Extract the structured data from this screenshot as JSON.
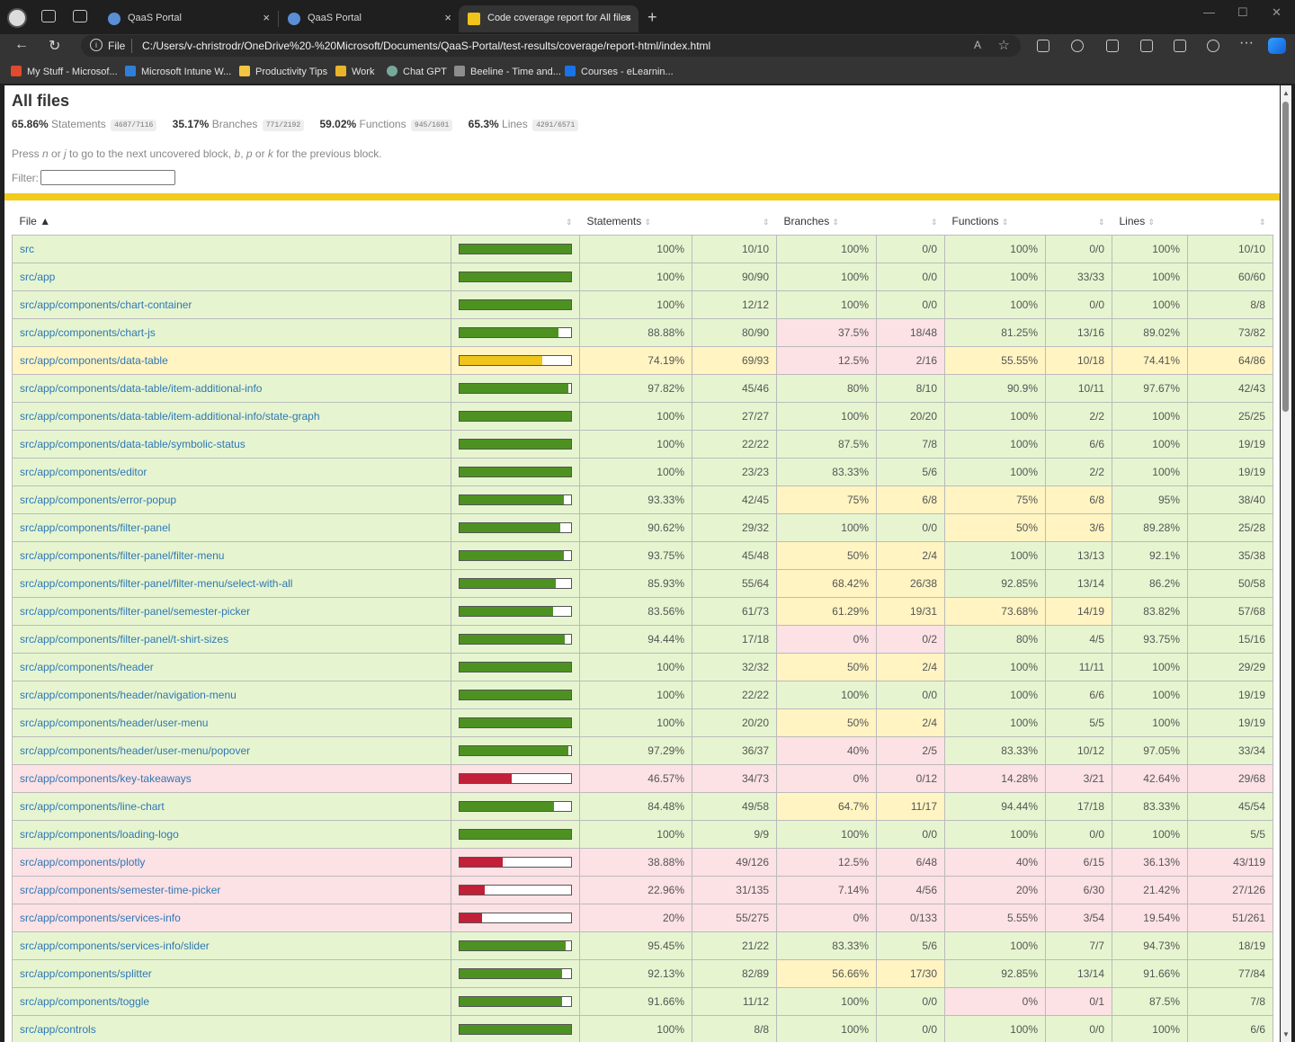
{
  "browser": {
    "tabs": [
      {
        "label": "QaaS Portal",
        "active": false
      },
      {
        "label": "QaaS Portal",
        "active": false
      },
      {
        "label": "Code coverage report for All files",
        "active": true
      }
    ],
    "address_scheme": "File",
    "url": "C:/Users/v-christrodr/OneDrive%20-%20Microsoft/Documents/QaaS-Portal/test-results/coverage/report-html/index.html",
    "bookmarks": [
      {
        "label": "My Stuff - Microsof...",
        "color": "#e04a2d"
      },
      {
        "label": "Microsoft Intune W...",
        "color": "#2f7fd8"
      },
      {
        "label": "Productivity Tips",
        "color": "#f4c542"
      },
      {
        "label": "Work",
        "color": "#e8b52a"
      },
      {
        "label": "Chat GPT",
        "color": "#76a99c"
      },
      {
        "label": "Beeline - Time and...",
        "color": "#8d8d8d"
      },
      {
        "label": "Courses - eLearnin...",
        "color": "#1a73e8"
      }
    ]
  },
  "report": {
    "title": "All files",
    "summary": [
      {
        "pct": "65.86%",
        "label": "Statements",
        "frac": "4687/7116"
      },
      {
        "pct": "35.17%",
        "label": "Branches",
        "frac": "771/2192"
      },
      {
        "pct": "59.02%",
        "label": "Functions",
        "frac": "945/1601"
      },
      {
        "pct": "65.3%",
        "label": "Lines",
        "frac": "4291/6571"
      }
    ],
    "hint": {
      "p1": "Press ",
      "k1": "n",
      "p2": " or ",
      "k2": "j",
      "p3": " to go to the next uncovered block, ",
      "k3": "b",
      "p4": ", ",
      "k4": "p",
      "p5": " or ",
      "k5": "k",
      "p6": " for the previous block."
    },
    "filter_label": "Filter:",
    "columns": {
      "file": "File",
      "statements": "Statements",
      "branches": "Branches",
      "functions": "Functions",
      "lines": "Lines"
    },
    "colors": {
      "high": "#4d9221",
      "medium": "#f0c419",
      "low": "#c21f39",
      "status_line": "#f2cc1b"
    },
    "rows": [
      {
        "file": "src",
        "level": "high",
        "stmt_fill": 1.0,
        "stmt": "100%",
        "stmt_frac": "10/10",
        "br": "100%",
        "br_frac": "0/0",
        "br_level": "high",
        "fn": "100%",
        "fn_frac": "0/0",
        "fn_level": "high",
        "ln": "100%",
        "ln_frac": "10/10",
        "ln_level": "high"
      },
      {
        "file": "src/app",
        "level": "high",
        "stmt_fill": 1.0,
        "stmt": "100%",
        "stmt_frac": "90/90",
        "br": "100%",
        "br_frac": "0/0",
        "br_level": "high",
        "fn": "100%",
        "fn_frac": "33/33",
        "fn_level": "high",
        "ln": "100%",
        "ln_frac": "60/60",
        "ln_level": "high"
      },
      {
        "file": "src/app/components/chart-container",
        "level": "high",
        "stmt_fill": 1.0,
        "stmt": "100%",
        "stmt_frac": "12/12",
        "br": "100%",
        "br_frac": "0/0",
        "br_level": "high",
        "fn": "100%",
        "fn_frac": "0/0",
        "fn_level": "high",
        "ln": "100%",
        "ln_frac": "8/8",
        "ln_level": "high"
      },
      {
        "file": "src/app/components/chart-js",
        "level": "high",
        "stmt_fill": 0.8888,
        "stmt": "88.88%",
        "stmt_frac": "80/90",
        "br": "37.5%",
        "br_frac": "18/48",
        "br_level": "low",
        "fn": "81.25%",
        "fn_frac": "13/16",
        "fn_level": "high",
        "ln": "89.02%",
        "ln_frac": "73/82",
        "ln_level": "high"
      },
      {
        "file": "src/app/components/data-table",
        "level": "medium",
        "stmt_fill": 0.7419,
        "stmt": "74.19%",
        "stmt_frac": "69/93",
        "br": "12.5%",
        "br_frac": "2/16",
        "br_level": "low",
        "fn": "55.55%",
        "fn_frac": "10/18",
        "fn_level": "medium",
        "ln": "74.41%",
        "ln_frac": "64/86",
        "ln_level": "medium"
      },
      {
        "file": "src/app/components/data-table/item-additional-info",
        "level": "high",
        "stmt_fill": 0.9782,
        "stmt": "97.82%",
        "stmt_frac": "45/46",
        "br": "80%",
        "br_frac": "8/10",
        "br_level": "high",
        "fn": "90.9%",
        "fn_frac": "10/11",
        "fn_level": "high",
        "ln": "97.67%",
        "ln_frac": "42/43",
        "ln_level": "high"
      },
      {
        "file": "src/app/components/data-table/item-additional-info/state-graph",
        "level": "high",
        "stmt_fill": 1.0,
        "stmt": "100%",
        "stmt_frac": "27/27",
        "br": "100%",
        "br_frac": "20/20",
        "br_level": "high",
        "fn": "100%",
        "fn_frac": "2/2",
        "fn_level": "high",
        "ln": "100%",
        "ln_frac": "25/25",
        "ln_level": "high"
      },
      {
        "file": "src/app/components/data-table/symbolic-status",
        "level": "high",
        "stmt_fill": 1.0,
        "stmt": "100%",
        "stmt_frac": "22/22",
        "br": "87.5%",
        "br_frac": "7/8",
        "br_level": "high",
        "fn": "100%",
        "fn_frac": "6/6",
        "fn_level": "high",
        "ln": "100%",
        "ln_frac": "19/19",
        "ln_level": "high"
      },
      {
        "file": "src/app/components/editor",
        "level": "high",
        "stmt_fill": 1.0,
        "stmt": "100%",
        "stmt_frac": "23/23",
        "br": "83.33%",
        "br_frac": "5/6",
        "br_level": "high",
        "fn": "100%",
        "fn_frac": "2/2",
        "fn_level": "high",
        "ln": "100%",
        "ln_frac": "19/19",
        "ln_level": "high"
      },
      {
        "file": "src/app/components/error-popup",
        "level": "high",
        "stmt_fill": 0.9333,
        "stmt": "93.33%",
        "stmt_frac": "42/45",
        "br": "75%",
        "br_frac": "6/8",
        "br_level": "medium",
        "fn": "75%",
        "fn_frac": "6/8",
        "fn_level": "medium",
        "ln": "95%",
        "ln_frac": "38/40",
        "ln_level": "high"
      },
      {
        "file": "src/app/components/filter-panel",
        "level": "high",
        "stmt_fill": 0.9062,
        "stmt": "90.62%",
        "stmt_frac": "29/32",
        "br": "100%",
        "br_frac": "0/0",
        "br_level": "high",
        "fn": "50%",
        "fn_frac": "3/6",
        "fn_level": "medium",
        "ln": "89.28%",
        "ln_frac": "25/28",
        "ln_level": "high"
      },
      {
        "file": "src/app/components/filter-panel/filter-menu",
        "level": "high",
        "stmt_fill": 0.9375,
        "stmt": "93.75%",
        "stmt_frac": "45/48",
        "br": "50%",
        "br_frac": "2/4",
        "br_level": "medium",
        "fn": "100%",
        "fn_frac": "13/13",
        "fn_level": "high",
        "ln": "92.1%",
        "ln_frac": "35/38",
        "ln_level": "high"
      },
      {
        "file": "src/app/components/filter-panel/filter-menu/select-with-all",
        "level": "high",
        "stmt_fill": 0.8593,
        "stmt": "85.93%",
        "stmt_frac": "55/64",
        "br": "68.42%",
        "br_frac": "26/38",
        "br_level": "medium",
        "fn": "92.85%",
        "fn_frac": "13/14",
        "fn_level": "high",
        "ln": "86.2%",
        "ln_frac": "50/58",
        "ln_level": "high"
      },
      {
        "file": "src/app/components/filter-panel/semester-picker",
        "level": "high",
        "stmt_fill": 0.8356,
        "stmt": "83.56%",
        "stmt_frac": "61/73",
        "br": "61.29%",
        "br_frac": "19/31",
        "br_level": "medium",
        "fn": "73.68%",
        "fn_frac": "14/19",
        "fn_level": "medium",
        "ln": "83.82%",
        "ln_frac": "57/68",
        "ln_level": "high"
      },
      {
        "file": "src/app/components/filter-panel/t-shirt-sizes",
        "level": "high",
        "stmt_fill": 0.9444,
        "stmt": "94.44%",
        "stmt_frac": "17/18",
        "br": "0%",
        "br_frac": "0/2",
        "br_level": "low",
        "fn": "80%",
        "fn_frac": "4/5",
        "fn_level": "high",
        "ln": "93.75%",
        "ln_frac": "15/16",
        "ln_level": "high"
      },
      {
        "file": "src/app/components/header",
        "level": "high",
        "stmt_fill": 1.0,
        "stmt": "100%",
        "stmt_frac": "32/32",
        "br": "50%",
        "br_frac": "2/4",
        "br_level": "medium",
        "fn": "100%",
        "fn_frac": "11/11",
        "fn_level": "high",
        "ln": "100%",
        "ln_frac": "29/29",
        "ln_level": "high"
      },
      {
        "file": "src/app/components/header/navigation-menu",
        "level": "high",
        "stmt_fill": 1.0,
        "stmt": "100%",
        "stmt_frac": "22/22",
        "br": "100%",
        "br_frac": "0/0",
        "br_level": "high",
        "fn": "100%",
        "fn_frac": "6/6",
        "fn_level": "high",
        "ln": "100%",
        "ln_frac": "19/19",
        "ln_level": "high"
      },
      {
        "file": "src/app/components/header/user-menu",
        "level": "high",
        "stmt_fill": 1.0,
        "stmt": "100%",
        "stmt_frac": "20/20",
        "br": "50%",
        "br_frac": "2/4",
        "br_level": "medium",
        "fn": "100%",
        "fn_frac": "5/5",
        "fn_level": "high",
        "ln": "100%",
        "ln_frac": "19/19",
        "ln_level": "high"
      },
      {
        "file": "src/app/components/header/user-menu/popover",
        "level": "high",
        "stmt_fill": 0.9729,
        "stmt": "97.29%",
        "stmt_frac": "36/37",
        "br": "40%",
        "br_frac": "2/5",
        "br_level": "low",
        "fn": "83.33%",
        "fn_frac": "10/12",
        "fn_level": "high",
        "ln": "97.05%",
        "ln_frac": "33/34",
        "ln_level": "high"
      },
      {
        "file": "src/app/components/key-takeaways",
        "level": "low",
        "stmt_fill": 0.4657,
        "stmt": "46.57%",
        "stmt_frac": "34/73",
        "br": "0%",
        "br_frac": "0/12",
        "br_level": "low",
        "fn": "14.28%",
        "fn_frac": "3/21",
        "fn_level": "low",
        "ln": "42.64%",
        "ln_frac": "29/68",
        "ln_level": "low"
      },
      {
        "file": "src/app/components/line-chart",
        "level": "high",
        "stmt_fill": 0.8448,
        "stmt": "84.48%",
        "stmt_frac": "49/58",
        "br": "64.7%",
        "br_frac": "11/17",
        "br_level": "medium",
        "fn": "94.44%",
        "fn_frac": "17/18",
        "fn_level": "high",
        "ln": "83.33%",
        "ln_frac": "45/54",
        "ln_level": "high"
      },
      {
        "file": "src/app/components/loading-logo",
        "level": "high",
        "stmt_fill": 1.0,
        "stmt": "100%",
        "stmt_frac": "9/9",
        "br": "100%",
        "br_frac": "0/0",
        "br_level": "high",
        "fn": "100%",
        "fn_frac": "0/0",
        "fn_level": "high",
        "ln": "100%",
        "ln_frac": "5/5",
        "ln_level": "high"
      },
      {
        "file": "src/app/components/plotly",
        "level": "low",
        "stmt_fill": 0.3888,
        "stmt": "38.88%",
        "stmt_frac": "49/126",
        "br": "12.5%",
        "br_frac": "6/48",
        "br_level": "low",
        "fn": "40%",
        "fn_frac": "6/15",
        "fn_level": "low",
        "ln": "36.13%",
        "ln_frac": "43/119",
        "ln_level": "low"
      },
      {
        "file": "src/app/components/semester-time-picker",
        "level": "low",
        "stmt_fill": 0.2296,
        "stmt": "22.96%",
        "stmt_frac": "31/135",
        "br": "7.14%",
        "br_frac": "4/56",
        "br_level": "low",
        "fn": "20%",
        "fn_frac": "6/30",
        "fn_level": "low",
        "ln": "21.42%",
        "ln_frac": "27/126",
        "ln_level": "low"
      },
      {
        "file": "src/app/components/services-info",
        "level": "low",
        "stmt_fill": 0.2,
        "stmt": "20%",
        "stmt_frac": "55/275",
        "br": "0%",
        "br_frac": "0/133",
        "br_level": "low",
        "fn": "5.55%",
        "fn_frac": "3/54",
        "fn_level": "low",
        "ln": "19.54%",
        "ln_frac": "51/261",
        "ln_level": "low"
      },
      {
        "file": "src/app/components/services-info/slider",
        "level": "high",
        "stmt_fill": 0.9545,
        "stmt": "95.45%",
        "stmt_frac": "21/22",
        "br": "83.33%",
        "br_frac": "5/6",
        "br_level": "high",
        "fn": "100%",
        "fn_frac": "7/7",
        "fn_level": "high",
        "ln": "94.73%",
        "ln_frac": "18/19",
        "ln_level": "high"
      },
      {
        "file": "src/app/components/splitter",
        "level": "high",
        "stmt_fill": 0.9213,
        "stmt": "92.13%",
        "stmt_frac": "82/89",
        "br": "56.66%",
        "br_frac": "17/30",
        "br_level": "medium",
        "fn": "92.85%",
        "fn_frac": "13/14",
        "fn_level": "high",
        "ln": "91.66%",
        "ln_frac": "77/84",
        "ln_level": "high"
      },
      {
        "file": "src/app/components/toggle",
        "level": "high",
        "stmt_fill": 0.9166,
        "stmt": "91.66%",
        "stmt_frac": "11/12",
        "br": "100%",
        "br_frac": "0/0",
        "br_level": "high",
        "fn": "0%",
        "fn_frac": "0/1",
        "fn_level": "low",
        "ln": "87.5%",
        "ln_frac": "7/8",
        "ln_level": "high"
      },
      {
        "file": "src/app/controls",
        "level": "high",
        "stmt_fill": 1.0,
        "stmt": "100%",
        "stmt_frac": "8/8",
        "br": "100%",
        "br_frac": "0/0",
        "br_level": "high",
        "fn": "100%",
        "fn_frac": "0/0",
        "fn_level": "high",
        "ln": "100%",
        "ln_frac": "6/6",
        "ln_level": "high"
      }
    ]
  }
}
